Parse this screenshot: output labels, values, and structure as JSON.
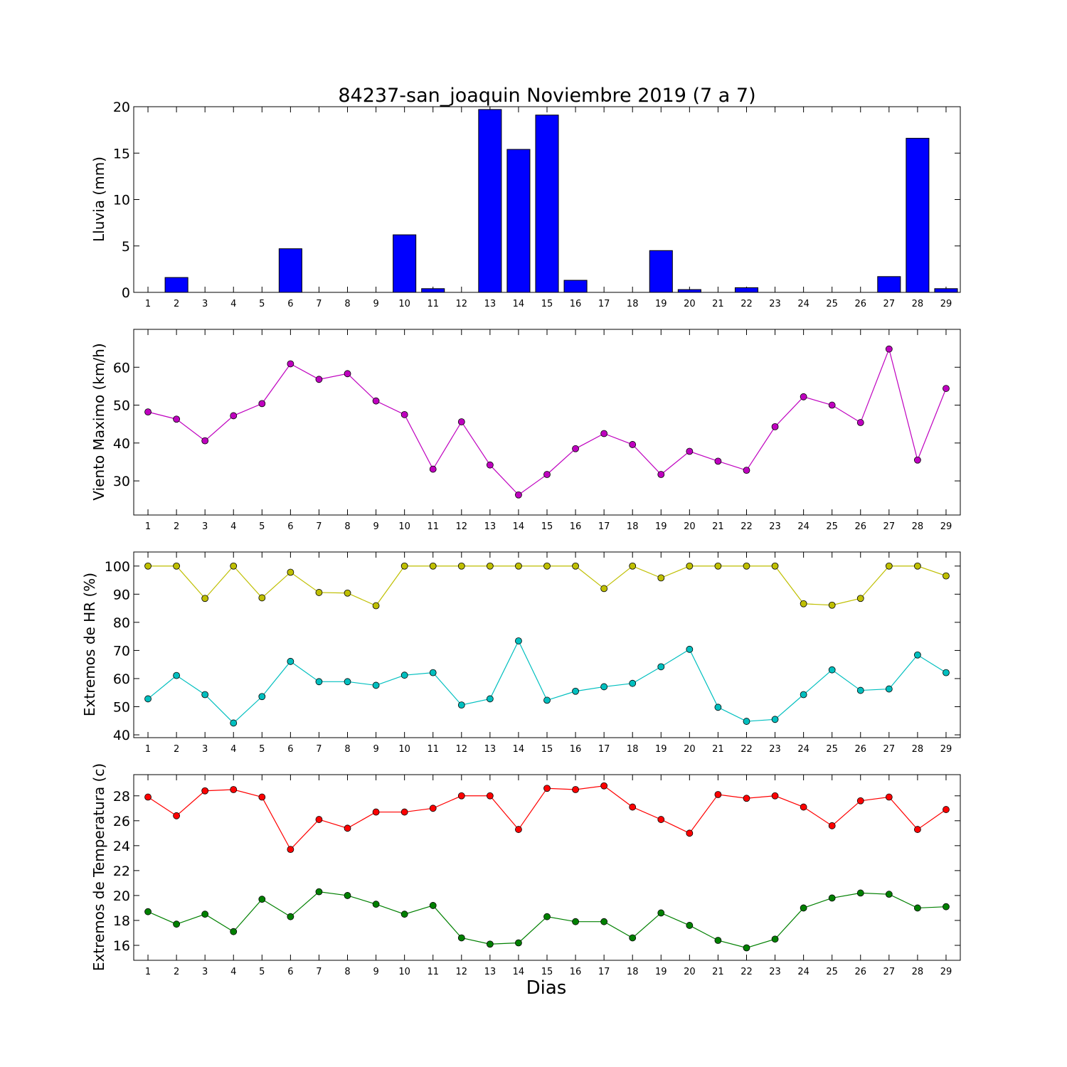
{
  "title": "84237-san_joaquin Noviembre 2019  (7 a 7)",
  "xlabel": "Dias",
  "chart_data": [
    {
      "type": "bar",
      "name": "lluvia",
      "ylabel": "Lluvia (mm)",
      "ylim": [
        0,
        20
      ],
      "yticks": [
        0,
        5,
        10,
        15,
        20
      ],
      "x": [
        1,
        2,
        3,
        4,
        5,
        6,
        7,
        8,
        9,
        10,
        11,
        12,
        13,
        14,
        15,
        16,
        17,
        18,
        19,
        20,
        21,
        22,
        23,
        24,
        25,
        26,
        27,
        28,
        29
      ],
      "values": [
        0,
        1.6,
        0,
        0,
        0,
        4.7,
        0,
        0,
        0,
        6.2,
        0.4,
        0,
        19.7,
        15.4,
        19.1,
        1.3,
        0,
        0,
        4.5,
        0.3,
        0,
        0.5,
        0,
        0,
        0,
        0,
        1.7,
        16.6,
        0.4
      ],
      "color": "#0000ff",
      "grid": false
    },
    {
      "type": "line",
      "name": "viento",
      "ylabel": "Viento Maximo (km/h)",
      "ylim": [
        21,
        70
      ],
      "yticks": [
        30,
        40,
        50,
        60
      ],
      "x": [
        1,
        2,
        3,
        4,
        5,
        6,
        7,
        8,
        9,
        10,
        11,
        12,
        13,
        14,
        15,
        16,
        17,
        18,
        19,
        20,
        21,
        22,
        23,
        24,
        25,
        26,
        27,
        28,
        29
      ],
      "series": [
        {
          "values": [
            48.2,
            46.3,
            40.6,
            47.2,
            50.4,
            60.9,
            56.8,
            58.3,
            51.1,
            47.5,
            33.1,
            45.6,
            34.2,
            26.3,
            31.7,
            38.5,
            42.5,
            39.6,
            31.7,
            37.8,
            35.2,
            32.8,
            44.3,
            52.2,
            50.0,
            45.4,
            64.8,
            35.5,
            54.4
          ],
          "color": "#bf00bf"
        }
      ],
      "grid": false
    },
    {
      "type": "line",
      "name": "humedad",
      "ylabel": "Extremos de HR (%)",
      "ylim": [
        39,
        105
      ],
      "yticks": [
        40,
        50,
        60,
        70,
        80,
        90,
        100
      ],
      "x": [
        1,
        2,
        3,
        4,
        5,
        6,
        7,
        8,
        9,
        10,
        11,
        12,
        13,
        14,
        15,
        16,
        17,
        18,
        19,
        20,
        21,
        22,
        23,
        24,
        25,
        26,
        27,
        28,
        29
      ],
      "series": [
        {
          "values": [
            100,
            100,
            88.5,
            100,
            88.7,
            97.8,
            90.6,
            90.4,
            85.9,
            100,
            100,
            100,
            100,
            100,
            100,
            100,
            92.0,
            100,
            95.8,
            100,
            100,
            100,
            100,
            86.6,
            86.1,
            88.5,
            100,
            100,
            96.5
          ],
          "color": "#bfbf00"
        },
        {
          "values": [
            52.8,
            61.1,
            54.3,
            44.2,
            53.6,
            66.1,
            58.9,
            58.9,
            57.6,
            61.2,
            62.1,
            50.6,
            52.8,
            73.4,
            52.3,
            55.5,
            57.1,
            58.3,
            64.2,
            70.4,
            49.8,
            44.8,
            45.5,
            54.3,
            63.1,
            55.8,
            56.3,
            68.4,
            62.1
          ],
          "color": "#00bfbf"
        }
      ],
      "grid": false
    },
    {
      "type": "line",
      "name": "temperatura",
      "ylabel": "Extremos de Temperatura (c)",
      "ylim": [
        14.8,
        29.7
      ],
      "yticks": [
        16,
        18,
        20,
        22,
        24,
        26,
        28
      ],
      "x": [
        1,
        2,
        3,
        4,
        5,
        6,
        7,
        8,
        9,
        10,
        11,
        12,
        13,
        14,
        15,
        16,
        17,
        18,
        19,
        20,
        21,
        22,
        23,
        24,
        25,
        26,
        27,
        28,
        29
      ],
      "series": [
        {
          "values": [
            27.9,
            26.4,
            28.4,
            28.5,
            27.9,
            23.7,
            26.1,
            25.4,
            26.7,
            26.7,
            27.0,
            28.0,
            28.0,
            25.3,
            28.6,
            28.5,
            28.8,
            27.1,
            26.1,
            25.0,
            28.1,
            27.8,
            28.0,
            27.1,
            25.6,
            27.6,
            27.9,
            25.3,
            26.9
          ],
          "color": "#ff0000"
        },
        {
          "values": [
            18.7,
            17.7,
            18.5,
            17.1,
            19.7,
            18.3,
            20.3,
            20.0,
            19.3,
            18.5,
            19.2,
            16.6,
            16.1,
            16.2,
            18.3,
            17.9,
            17.9,
            16.6,
            18.6,
            17.6,
            16.4,
            15.8,
            16.5,
            19.0,
            19.8,
            20.2,
            20.1,
            19.0,
            19.1
          ],
          "color": "#008000"
        }
      ],
      "grid": false
    }
  ]
}
